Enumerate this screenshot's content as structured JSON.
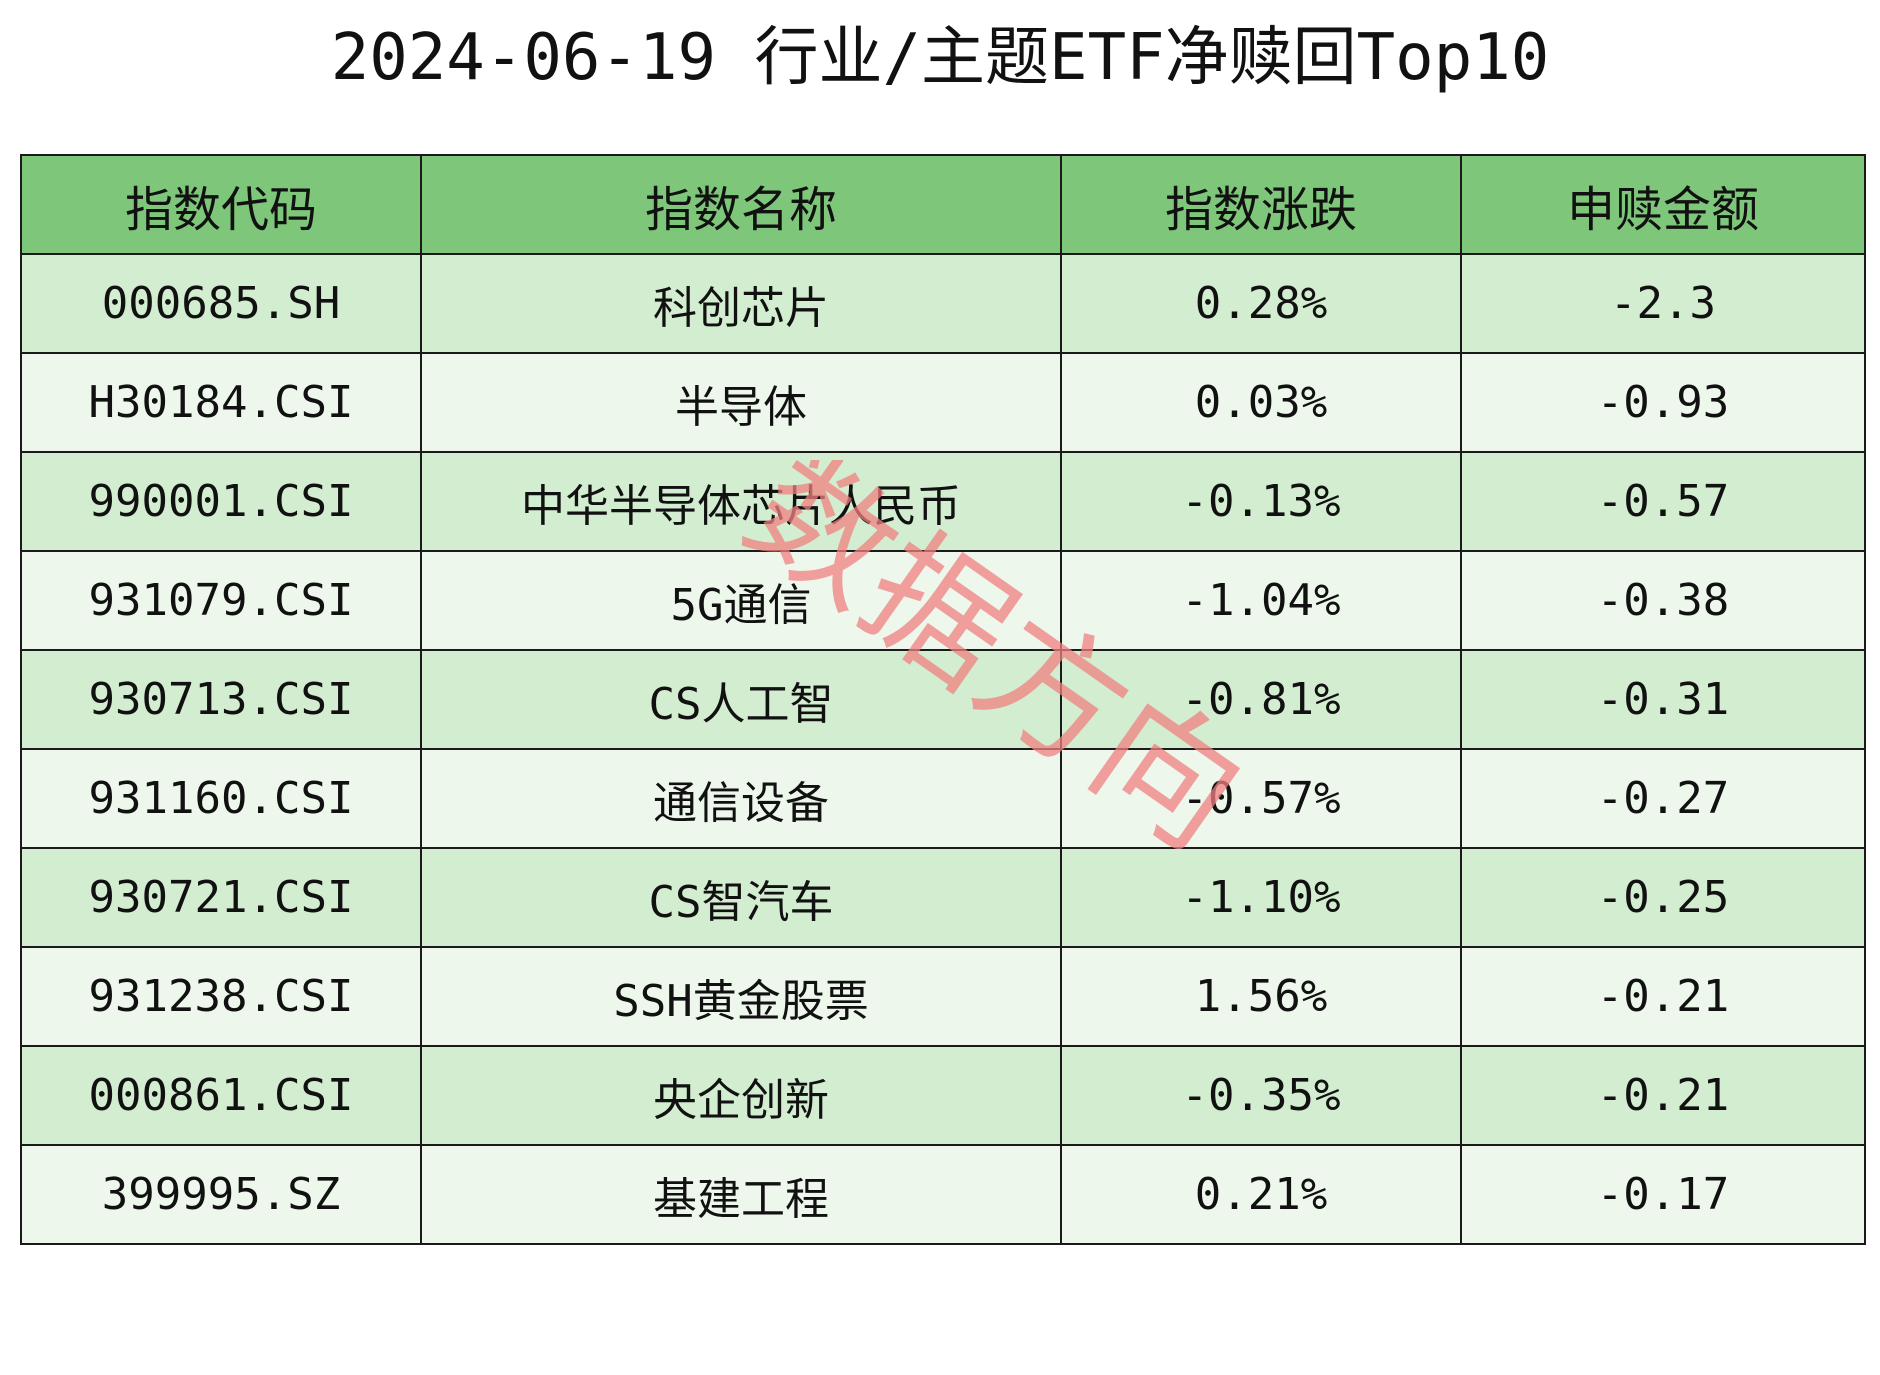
{
  "title": "2024-06-19 行业/主题ETF净赎回Top10",
  "watermark": "数据方向",
  "colors": {
    "header_bg": "#7ec77a",
    "row_odd_bg": "#d3edd0",
    "row_even_bg": "#edf7ec",
    "watermark": "#f08080"
  },
  "chart_data": {
    "type": "table",
    "title": "2024-06-19 行业/主题ETF净赎回Top10",
    "columns": [
      "指数代码",
      "指数名称",
      "指数涨跌",
      "申赎金额"
    ],
    "rows": [
      [
        "000685.SH",
        "科创芯片",
        "0.28%",
        "-2.3"
      ],
      [
        "H30184.CSI",
        "半导体",
        "0.03%",
        "-0.93"
      ],
      [
        "990001.CSI",
        "中华半导体芯片人民币",
        "-0.13%",
        "-0.57"
      ],
      [
        "931079.CSI",
        "5G通信",
        "-1.04%",
        "-0.38"
      ],
      [
        "930713.CSI",
        "CS人工智",
        "-0.81%",
        "-0.31"
      ],
      [
        "931160.CSI",
        "通信设备",
        "-0.57%",
        "-0.27"
      ],
      [
        "930721.CSI",
        "CS智汽车",
        "-1.10%",
        "-0.25"
      ],
      [
        "931238.CSI",
        "SSH黄金股票",
        "1.56%",
        "-0.21"
      ],
      [
        "000861.CSI",
        "央企创新",
        "-0.35%",
        "-0.21"
      ],
      [
        "399995.SZ",
        "基建工程",
        "0.21%",
        "-0.17"
      ]
    ]
  }
}
